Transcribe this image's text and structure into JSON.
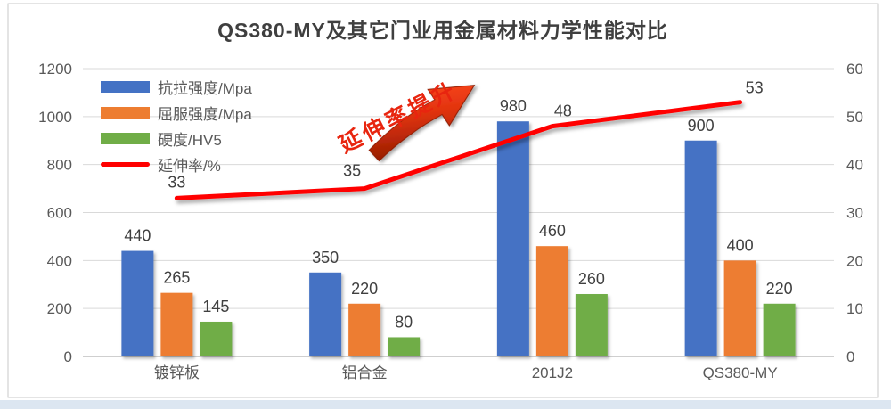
{
  "title": "QS380-MY及其它门业用金属材料力学性能对比",
  "annotation": {
    "text": "延伸率提升"
  },
  "legend": {
    "items": [
      {
        "label": "抗拉强度/Mpa",
        "color": "#4472C4",
        "swatch": "bar"
      },
      {
        "label": "屈服强度/Mpa",
        "color": "#ED7D31",
        "swatch": "bar"
      },
      {
        "label": "硬度/HV5",
        "color": "#70AD47",
        "swatch": "bar"
      },
      {
        "label": "延伸率/%",
        "color": "#FF0000",
        "swatch": "line"
      }
    ]
  },
  "colors": {
    "tensile_blue": "#4472C4",
    "yield_orange": "#ED7D31",
    "hardness_green": "#70AD47",
    "elongation_red": "#FF0000",
    "grid_line": "#D9D9D9",
    "axis_line": "#BFBFBF",
    "axis_text": "#595959",
    "value_text": "#404040",
    "annotation_red": "#E8250F",
    "arrow_dark": "#941C00",
    "arrow_mid": "#E23410",
    "arrow_bright": "#FF4A1A",
    "frame_border": "#E4E4E4",
    "bottom_strip": "#DCE6F1"
  },
  "chart_data": {
    "type": "bar",
    "title": "QS380-MY及其它门业用金属材料力学性能对比",
    "categories": [
      "镀锌板",
      "铝合金",
      "201J2",
      "QS380-MY"
    ],
    "series": [
      {
        "name": "抗拉强度/Mpa",
        "type": "bar",
        "axis": "left",
        "color": "#4472C4",
        "values": [
          440,
          350,
          980,
          900
        ]
      },
      {
        "name": "屈服强度/Mpa",
        "type": "bar",
        "axis": "left",
        "color": "#ED7D31",
        "values": [
          265,
          220,
          460,
          400
        ]
      },
      {
        "name": "硬度/HV5",
        "type": "bar",
        "axis": "left",
        "color": "#70AD47",
        "values": [
          145,
          80,
          260,
          220
        ]
      },
      {
        "name": "延伸率/%",
        "type": "line",
        "axis": "right",
        "color": "#FF0000",
        "values": [
          33,
          35,
          48,
          53
        ]
      }
    ],
    "left_axis": {
      "min": 0,
      "max": 1200,
      "step": 200,
      "ticks": [
        "0",
        "200",
        "400",
        "600",
        "800",
        "1000",
        "1200"
      ]
    },
    "right_axis": {
      "min": 0,
      "max": 60,
      "step": 10,
      "ticks": [
        "0",
        "10",
        "20",
        "30",
        "40",
        "50",
        "60"
      ]
    },
    "grid": true,
    "legend_position": "inside-top-left",
    "annotation": "延伸率提升"
  }
}
